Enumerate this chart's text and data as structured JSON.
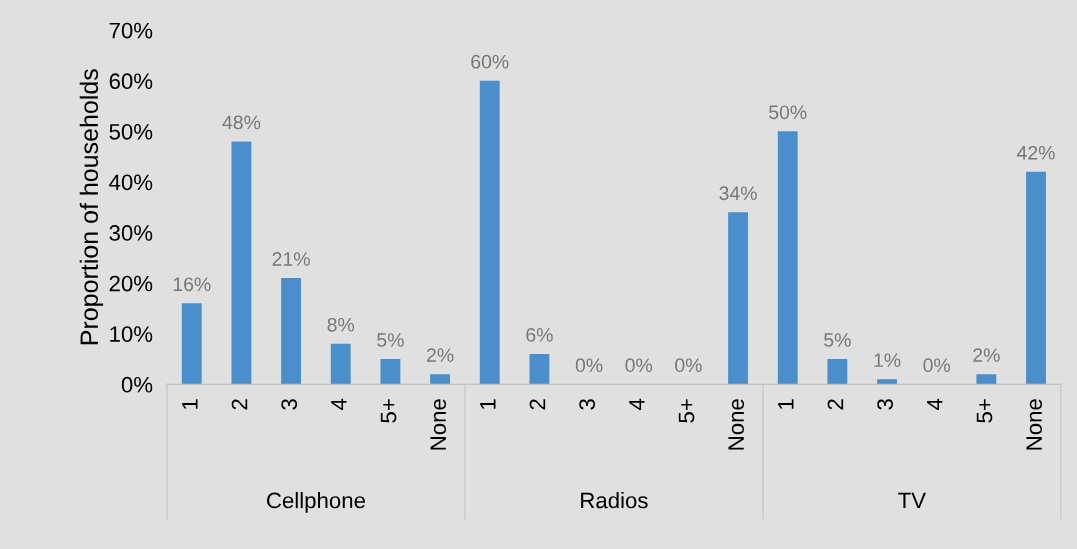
{
  "chart_data": {
    "type": "bar",
    "ylabel": "Proportion of households",
    "categories": [
      "1",
      "2",
      "3",
      "4",
      "5+",
      "None",
      "1",
      "2",
      "3",
      "4",
      "5+",
      "None",
      "1",
      "2",
      "3",
      "4",
      "5+",
      "None"
    ],
    "values": [
      16,
      48,
      21,
      8,
      5,
      2,
      60,
      6,
      0,
      0,
      0,
      34,
      50,
      5,
      1,
      0,
      2,
      42
    ],
    "value_labels": [
      "16%",
      "48%",
      "21%",
      "8%",
      "5%",
      "2%",
      "60%",
      "6%",
      "0%",
      "0%",
      "0%",
      "34%",
      "50%",
      "5%",
      "1%",
      "0%",
      "2%",
      "42%"
    ],
    "color": "#4a8fcc",
    "ylim": [
      0,
      70
    ],
    "yticks": [
      {
        "value": 0,
        "label": "0%"
      },
      {
        "value": 10,
        "label": "10%"
      },
      {
        "value": 20,
        "label": "20%"
      },
      {
        "value": 30,
        "label": "30%"
      },
      {
        "value": 40,
        "label": "40%"
      },
      {
        "value": 50,
        "label": "50%"
      },
      {
        "value": 60,
        "label": "60%"
      },
      {
        "value": 70,
        "label": "70%"
      }
    ],
    "annotations": [
      "Cellphone",
      "Radios",
      "TV"
    ],
    "grid": false,
    "legend": false
  }
}
